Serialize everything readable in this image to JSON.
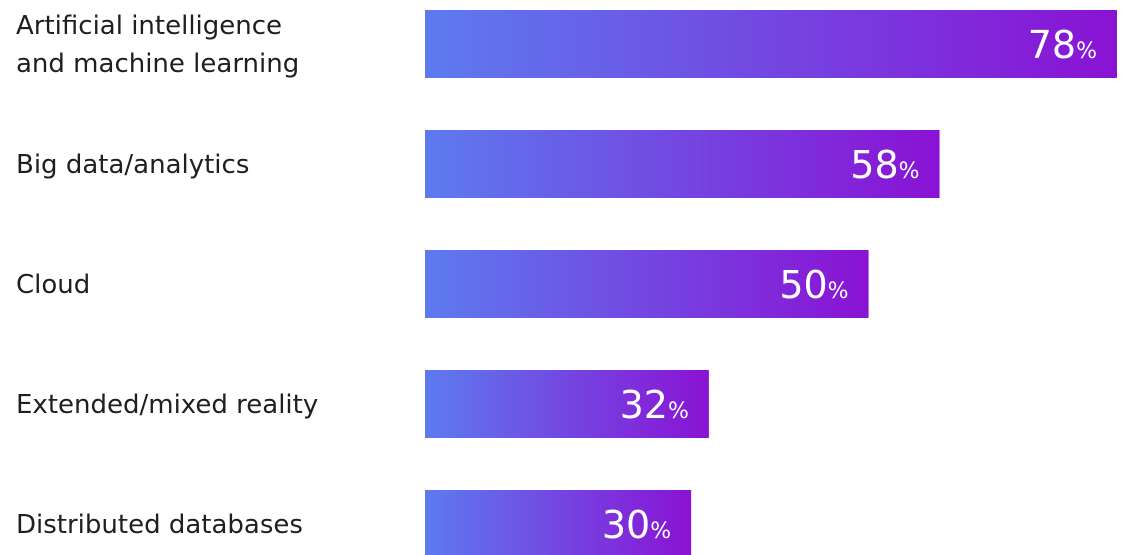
{
  "chart_data": {
    "type": "bar",
    "orientation": "horizontal",
    "categories": [
      [
        "Artificial intelligence",
        "and machine learning"
      ],
      [
        "Big data/analytics"
      ],
      [
        "Cloud"
      ],
      [
        "Extended/mixed reality"
      ],
      [
        "Distributed databases"
      ]
    ],
    "values": [
      78,
      58,
      50,
      32,
      30
    ],
    "value_suffix": "%",
    "title": "",
    "xlabel": "",
    "ylabel": "",
    "xlim": [
      0,
      78
    ],
    "grid": false,
    "legend": "none",
    "colors": {
      "gradient_start": "#5d7bef",
      "gradient_end": "#8a12d4",
      "label_text": "#1f1f1f",
      "value_text": "#ffffff"
    }
  }
}
